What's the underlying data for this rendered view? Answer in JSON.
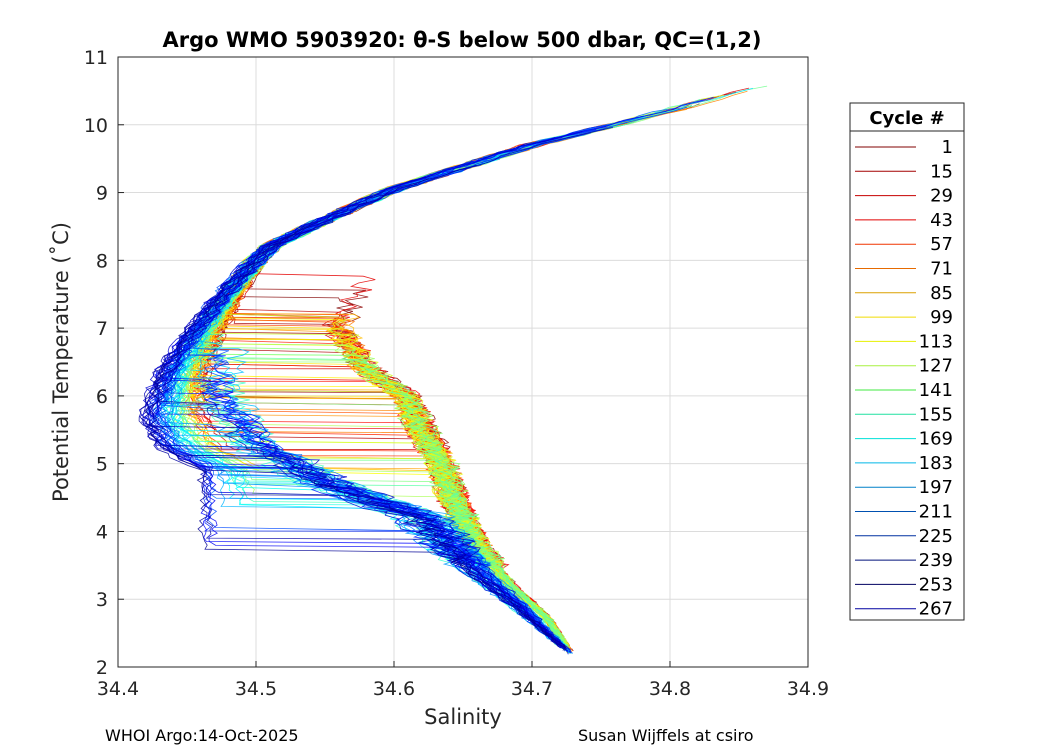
{
  "chart_data": {
    "type": "line",
    "title": "Argo WMO 5903920: θ-S below 500 dbar,  QC=(1,2)",
    "xlabel": "Salinity",
    "ylabel": "Potential Temperature (˚C)",
    "xlim": [
      34.4,
      34.9
    ],
    "ylim": [
      2,
      11
    ],
    "xticks": [
      "34.4",
      "34.5",
      "34.6",
      "34.7",
      "34.8",
      "34.9"
    ],
    "yticks": [
      "2",
      "3",
      "4",
      "5",
      "6",
      "7",
      "8",
      "9",
      "10",
      "11"
    ],
    "grid": true,
    "legend": {
      "title": "Cycle #",
      "placement": "right",
      "entries": [
        {
          "label": "1",
          "color": "#800000"
        },
        {
          "label": "15",
          "color": "#a30000"
        },
        {
          "label": "29",
          "color": "#c60000"
        },
        {
          "label": "43",
          "color": "#e00000"
        },
        {
          "label": "57",
          "color": "#f03500"
        },
        {
          "label": "71",
          "color": "#e66a00"
        },
        {
          "label": "85",
          "color": "#dca000"
        },
        {
          "label": "99",
          "color": "#f0dc00"
        },
        {
          "label": "113",
          "color": "#e6f000"
        },
        {
          "label": "127",
          "color": "#a8f040"
        },
        {
          "label": "141",
          "color": "#40e840"
        },
        {
          "label": "155",
          "color": "#20e0a0"
        },
        {
          "label": "169",
          "color": "#00e0d8"
        },
        {
          "label": "183",
          "color": "#00b8e8"
        },
        {
          "label": "197",
          "color": "#0080c8"
        },
        {
          "label": "211",
          "color": "#0050b0"
        },
        {
          "label": "225",
          "color": "#0030a0"
        },
        {
          "label": "239",
          "color": "#00107a"
        },
        {
          "label": "253",
          "color": "#000060"
        },
        {
          "label": "267",
          "color": "#0000a0"
        }
      ]
    },
    "series_shape": {
      "warm_branch": [
        [
          34.87,
          10.6
        ],
        [
          34.78,
          10.1
        ],
        [
          34.7,
          9.7
        ],
        [
          34.6,
          9.05
        ],
        [
          34.55,
          8.6
        ],
        [
          34.51,
          8.2
        ],
        [
          34.48,
          7.6
        ],
        [
          34.45,
          6.9
        ],
        [
          34.43,
          6.3
        ],
        [
          34.42,
          5.7
        ],
        [
          34.43,
          5.25
        ],
        [
          34.46,
          4.9
        ]
      ],
      "upper_cycles_fold": [
        [
          34.6,
          8.1
        ],
        [
          34.57,
          7.5
        ],
        [
          34.56,
          7.0
        ],
        [
          34.58,
          6.4
        ],
        [
          34.61,
          6.0
        ],
        [
          34.62,
          5.5
        ],
        [
          34.635,
          5.0
        ],
        [
          34.645,
          4.4
        ],
        [
          34.66,
          3.8
        ],
        [
          34.685,
          3.2
        ],
        [
          34.71,
          2.75
        ],
        [
          34.73,
          2.15
        ]
      ],
      "late_cycles_fold": [
        [
          34.48,
          7.3
        ],
        [
          34.47,
          6.6
        ],
        [
          34.47,
          6.0
        ],
        [
          34.5,
          5.3
        ],
        [
          34.55,
          4.7
        ],
        [
          34.62,
          4.2
        ],
        [
          34.64,
          3.8
        ],
        [
          34.66,
          3.4
        ],
        [
          34.69,
          2.9
        ],
        [
          34.73,
          2.15
        ]
      ]
    }
  },
  "footer": {
    "left": "WHOI Argo:14-Oct-2025",
    "right": "Susan Wijffels at csiro"
  }
}
